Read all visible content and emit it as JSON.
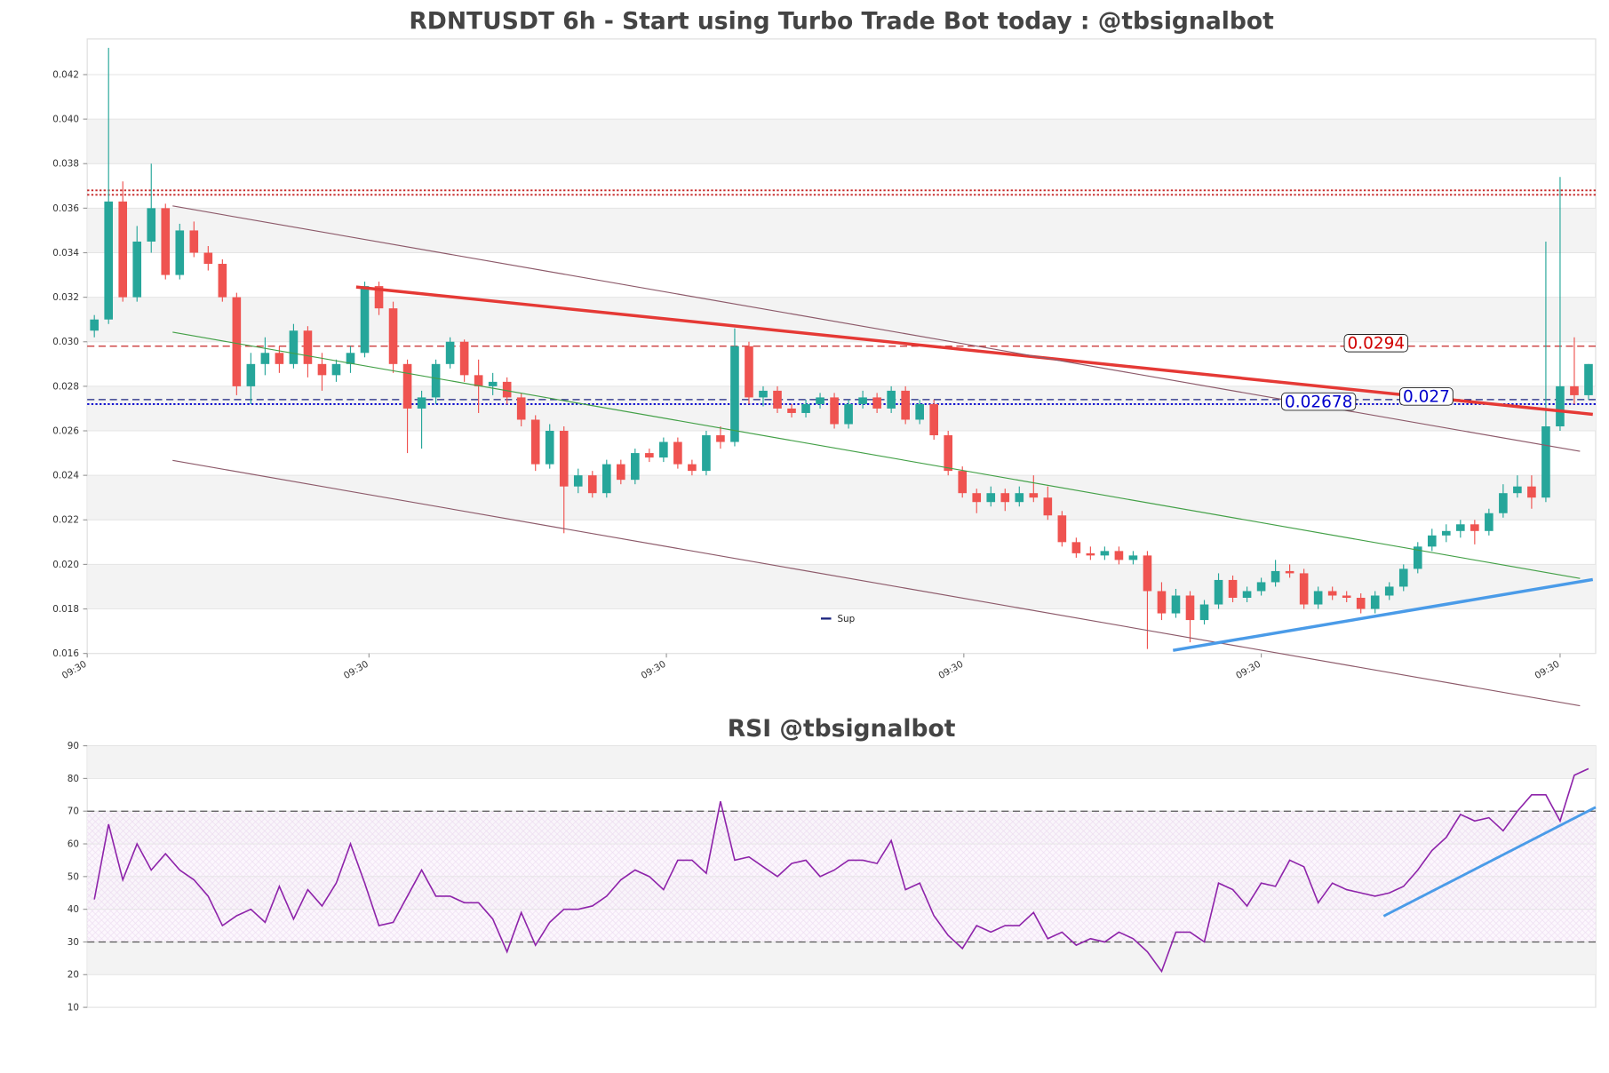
{
  "chart_data": [
    {
      "type": "candlestick",
      "title": "RDNTUSDT 6h - Start using Turbo Trade Bot today : @tbsignalbot",
      "xlim": [
        -0.5,
        105.5
      ],
      "xticks": [
        {
          "value": -0.5,
          "label": "09:30"
        },
        {
          "value": 19.3,
          "label": "09:30"
        },
        {
          "value": 40.2,
          "label": "09:30"
        },
        {
          "value": 61.1,
          "label": "09:30"
        },
        {
          "value": 82,
          "label": "09:30"
        },
        {
          "value": 103,
          "label": "09:30"
        }
      ],
      "ylim": [
        0.016,
        0.0436
      ],
      "yticks": [
        0.016,
        0.018,
        {
          "value": 0.02,
          "label": "0.020"
        },
        0.022,
        0.024,
        0.026,
        0.028,
        {
          "value": 0.03,
          "label": "0.030"
        },
        0.032,
        0.034,
        0.036,
        0.038,
        {
          "value": 0.04,
          "label": "0.040"
        },
        0.042
      ],
      "banded": true,
      "up_color": "#26a69a",
      "down_color": "#ef5350",
      "ohlc": [
        [
          0.0305,
          0.0312,
          0.0302,
          0.031
        ],
        [
          0.031,
          0.0432,
          0.0308,
          0.0363
        ],
        [
          0.0363,
          0.0372,
          0.0318,
          0.032
        ],
        [
          0.032,
          0.0352,
          0.0318,
          0.0345
        ],
        [
          0.0345,
          0.038,
          0.034,
          0.036
        ],
        [
          0.036,
          0.0362,
          0.0328,
          0.033
        ],
        [
          0.033,
          0.0353,
          0.0328,
          0.035
        ],
        [
          0.035,
          0.0354,
          0.0338,
          0.034
        ],
        [
          0.034,
          0.0343,
          0.0332,
          0.0335
        ],
        [
          0.0335,
          0.0337,
          0.0318,
          0.032
        ],
        [
          0.032,
          0.0322,
          0.0276,
          0.028
        ],
        [
          0.028,
          0.0295,
          0.0272,
          0.029
        ],
        [
          0.029,
          0.0302,
          0.0285,
          0.0295
        ],
        [
          0.0295,
          0.0298,
          0.0286,
          0.029
        ],
        [
          0.029,
          0.0308,
          0.0288,
          0.0305
        ],
        [
          0.0305,
          0.0307,
          0.0284,
          0.029
        ],
        [
          0.029,
          0.0295,
          0.0278,
          0.0285
        ],
        [
          0.0285,
          0.0292,
          0.0282,
          0.029
        ],
        [
          0.029,
          0.0298,
          0.0286,
          0.0295
        ],
        [
          0.0295,
          0.0327,
          0.0293,
          0.0325
        ],
        [
          0.0325,
          0.0327,
          0.0312,
          0.0315
        ],
        [
          0.0315,
          0.0318,
          0.0286,
          0.029
        ],
        [
          0.029,
          0.0292,
          0.025,
          0.027
        ],
        [
          0.027,
          0.0278,
          0.0252,
          0.0275
        ],
        [
          0.0275,
          0.0292,
          0.0272,
          0.029
        ],
        [
          0.029,
          0.0302,
          0.0288,
          0.03
        ],
        [
          0.03,
          0.0301,
          0.0282,
          0.0285
        ],
        [
          0.0285,
          0.0292,
          0.0268,
          0.028
        ],
        [
          0.028,
          0.0286,
          0.0276,
          0.0282
        ],
        [
          0.0282,
          0.0284,
          0.0272,
          0.0275
        ],
        [
          0.0275,
          0.0277,
          0.0262,
          0.0265
        ],
        [
          0.0265,
          0.0267,
          0.0242,
          0.0245
        ],
        [
          0.0245,
          0.0263,
          0.0243,
          0.026
        ],
        [
          0.026,
          0.0262,
          0.0214,
          0.0235
        ],
        [
          0.0235,
          0.0243,
          0.0232,
          0.024
        ],
        [
          0.024,
          0.0242,
          0.023,
          0.0232
        ],
        [
          0.0232,
          0.0247,
          0.023,
          0.0245
        ],
        [
          0.0245,
          0.0247,
          0.0236,
          0.0238
        ],
        [
          0.0238,
          0.0252,
          0.0236,
          0.025
        ],
        [
          0.025,
          0.0252,
          0.0246,
          0.0248
        ],
        [
          0.0248,
          0.0257,
          0.0246,
          0.0255
        ],
        [
          0.0255,
          0.0257,
          0.0243,
          0.0245
        ],
        [
          0.0245,
          0.0247,
          0.024,
          0.0242
        ],
        [
          0.0242,
          0.026,
          0.024,
          0.0258
        ],
        [
          0.0258,
          0.0262,
          0.0252,
          0.0255
        ],
        [
          0.0255,
          0.0306,
          0.0253,
          0.0298
        ],
        [
          0.0298,
          0.03,
          0.0272,
          0.0275
        ],
        [
          0.0275,
          0.028,
          0.0271,
          0.0278
        ],
        [
          0.0278,
          0.028,
          0.0268,
          0.027
        ],
        [
          0.027,
          0.0272,
          0.0266,
          0.0268
        ],
        [
          0.0268,
          0.0274,
          0.0266,
          0.0272
        ],
        [
          0.0272,
          0.0277,
          0.027,
          0.0275
        ],
        [
          0.0275,
          0.0277,
          0.0261,
          0.0263
        ],
        [
          0.0263,
          0.0274,
          0.0261,
          0.0272
        ],
        [
          0.0272,
          0.0278,
          0.027,
          0.0275
        ],
        [
          0.0275,
          0.0277,
          0.0268,
          0.027
        ],
        [
          0.027,
          0.028,
          0.0268,
          0.0278
        ],
        [
          0.0278,
          0.028,
          0.0263,
          0.0265
        ],
        [
          0.0265,
          0.0274,
          0.0263,
          0.0272
        ],
        [
          0.0272,
          0.0274,
          0.0256,
          0.0258
        ],
        [
          0.0258,
          0.026,
          0.024,
          0.0242
        ],
        [
          0.0242,
          0.0244,
          0.023,
          0.0232
        ],
        [
          0.0232,
          0.0234,
          0.0223,
          0.0228
        ],
        [
          0.0228,
          0.0235,
          0.0226,
          0.0232
        ],
        [
          0.0232,
          0.0234,
          0.0224,
          0.0228
        ],
        [
          0.0228,
          0.0235,
          0.0226,
          0.0232
        ],
        [
          0.0232,
          0.024,
          0.0228,
          0.023
        ],
        [
          0.023,
          0.0235,
          0.022,
          0.0222
        ],
        [
          0.0222,
          0.0224,
          0.0208,
          0.021
        ],
        [
          0.021,
          0.0212,
          0.0203,
          0.0205
        ],
        [
          0.0205,
          0.0208,
          0.0202,
          0.0204
        ],
        [
          0.0204,
          0.0208,
          0.0202,
          0.0206
        ],
        [
          0.0206,
          0.0208,
          0.02,
          0.0202
        ],
        [
          0.0202,
          0.0206,
          0.02,
          0.0204
        ],
        [
          0.0204,
          0.0206,
          0.0162,
          0.0188
        ],
        [
          0.0188,
          0.0192,
          0.0175,
          0.0178
        ],
        [
          0.0178,
          0.0189,
          0.0176,
          0.0186
        ],
        [
          0.0186,
          0.0188,
          0.0165,
          0.0175
        ],
        [
          0.0175,
          0.0184,
          0.0173,
          0.0182
        ],
        [
          0.0182,
          0.0196,
          0.018,
          0.0193
        ],
        [
          0.0193,
          0.0195,
          0.0183,
          0.0185
        ],
        [
          0.0185,
          0.019,
          0.0183,
          0.0188
        ],
        [
          0.0188,
          0.0194,
          0.0186,
          0.0192
        ],
        [
          0.0192,
          0.0202,
          0.019,
          0.0197
        ],
        [
          0.0197,
          0.02,
          0.0194,
          0.0196
        ],
        [
          0.0196,
          0.0198,
          0.018,
          0.0182
        ],
        [
          0.0182,
          0.019,
          0.018,
          0.0188
        ],
        [
          0.0188,
          0.019,
          0.0184,
          0.0186
        ],
        [
          0.0186,
          0.0188,
          0.0183,
          0.0185
        ],
        [
          0.0185,
          0.0187,
          0.0178,
          0.018
        ],
        [
          0.018,
          0.0188,
          0.0178,
          0.0186
        ],
        [
          0.0186,
          0.0192,
          0.0184,
          0.019
        ],
        [
          0.019,
          0.02,
          0.0188,
          0.0198
        ],
        [
          0.0198,
          0.021,
          0.0196,
          0.0208
        ],
        [
          0.0208,
          0.0216,
          0.0206,
          0.0213
        ],
        [
          0.0213,
          0.0218,
          0.021,
          0.0215
        ],
        [
          0.0215,
          0.022,
          0.0212,
          0.0218
        ],
        [
          0.0218,
          0.022,
          0.0209,
          0.0215
        ],
        [
          0.0215,
          0.0225,
          0.0213,
          0.0223
        ],
        [
          0.0223,
          0.0236,
          0.0221,
          0.0232
        ],
        [
          0.0232,
          0.024,
          0.023,
          0.0235
        ],
        [
          0.0235,
          0.024,
          0.0225,
          0.023
        ],
        [
          0.023,
          0.0345,
          0.0228,
          0.0262
        ],
        [
          0.0262,
          0.0374,
          0.026,
          0.028
        ],
        [
          0.028,
          0.0302,
          0.0272,
          0.0276
        ],
        [
          0.0276,
          0.029,
          0.0274,
          0.029
        ]
      ],
      "levels": [
        {
          "value": 0.0368,
          "color": "#c62828",
          "style": "dotted"
        },
        {
          "value": 0.0366,
          "color": "#c62828",
          "style": "dotted"
        },
        {
          "value": 0.0298,
          "color": "#c62828",
          "style": "dashed"
        },
        {
          "value": 0.0274,
          "color": "#1a237e",
          "style": "dashed"
        },
        {
          "value": 0.0272,
          "color": "#0000cc",
          "style": "dotted"
        }
      ],
      "trendlines": [
        {
          "x": [
            18.4,
            105.3
          ],
          "y": [
            0.03246,
            0.02674
          ],
          "color": "#e53935",
          "width": 3
        },
        {
          "x": [
            5.5,
            104.4
          ],
          "y": [
            0.0361,
            0.02508
          ],
          "color": "#8d5a6a",
          "width": 1
        },
        {
          "x": [
            5.5,
            104.4
          ],
          "y": [
            0.02467,
            0.01365
          ],
          "color": "#8d5a6a",
          "width": 1
        },
        {
          "x": [
            5.5,
            104.4
          ],
          "y": [
            0.03043,
            0.01937
          ],
          "color": "#43a047",
          "width": 1
        },
        {
          "name": "Sup",
          "x": [
            75.8,
            105.3
          ],
          "y": [
            0.01614,
            0.01932
          ],
          "color": "#4a9be8",
          "width": 3
        }
      ],
      "annotations": [
        {
          "value": 0.0294,
          "color": "#d00000"
        },
        {
          "value": 0.02678,
          "color": "#0000cc"
        },
        {
          "value": 0.027,
          "color": "#0000cc"
        }
      ],
      "legend": "lower center"
    },
    {
      "type": "line",
      "title": "RSI @tbsignalbot",
      "xlim": [
        -0.5,
        105.5
      ],
      "ylim": [
        10,
        90
      ],
      "yticks": [
        10,
        20,
        30,
        40,
        50,
        60,
        70,
        80,
        90
      ],
      "banded": true,
      "band": [
        30,
        70
      ],
      "levels": [
        {
          "value": 70,
          "color": "#555555",
          "style": "dashed"
        },
        {
          "value": 30,
          "color": "#555555",
          "style": "dashed"
        }
      ],
      "color": "#8e24aa",
      "values": [
        43,
        66,
        49,
        60,
        52,
        57,
        52,
        49,
        44,
        35,
        38,
        40,
        36,
        47,
        37,
        46,
        41,
        48,
        60,
        48,
        35,
        36,
        44,
        52,
        44,
        44,
        42,
        42,
        37,
        27,
        39,
        29,
        36,
        40,
        40,
        41,
        44,
        49,
        52,
        50,
        46,
        55,
        55,
        51,
        73,
        55,
        56,
        53,
        50,
        54,
        55,
        50,
        52,
        55,
        55,
        54,
        61,
        46,
        48,
        38,
        32,
        28,
        35,
        33,
        35,
        35,
        39,
        31,
        33,
        29,
        31,
        30,
        33,
        31,
        27,
        21,
        33,
        33,
        30,
        48,
        46,
        41,
        48,
        47,
        55,
        53,
        42,
        48,
        46,
        45,
        44,
        45,
        47,
        52,
        58,
        62,
        69,
        67,
        68,
        64,
        70,
        75,
        75,
        67,
        81,
        83
      ],
      "trendlines": [
        {
          "x": [
            90.6,
            105.5
          ],
          "y": [
            37.9,
            71.2
          ],
          "color": "#4a9be8",
          "width": 2.5
        }
      ]
    }
  ]
}
